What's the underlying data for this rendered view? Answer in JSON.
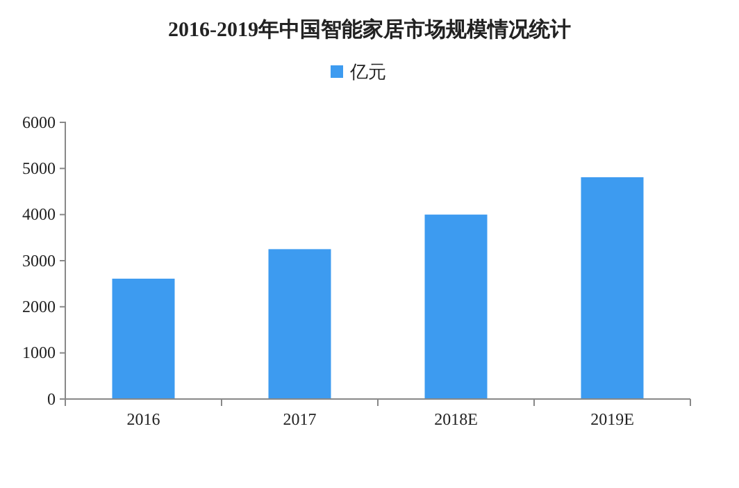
{
  "chart_data": {
    "type": "bar",
    "title": "2016-2019年中国智能家居市场规模情况统计",
    "categories": [
      "2016",
      "2017",
      "2018E",
      "2019E"
    ],
    "series": [
      {
        "name": "亿元",
        "color": "#3d9bf0",
        "values": [
          2610,
          3250,
          4000,
          4810
        ]
      }
    ],
    "ylim": [
      0,
      6000
    ],
    "yticks": [
      0,
      1000,
      2000,
      3000,
      4000,
      5000,
      6000
    ],
    "grid": false,
    "legend": "top"
  }
}
